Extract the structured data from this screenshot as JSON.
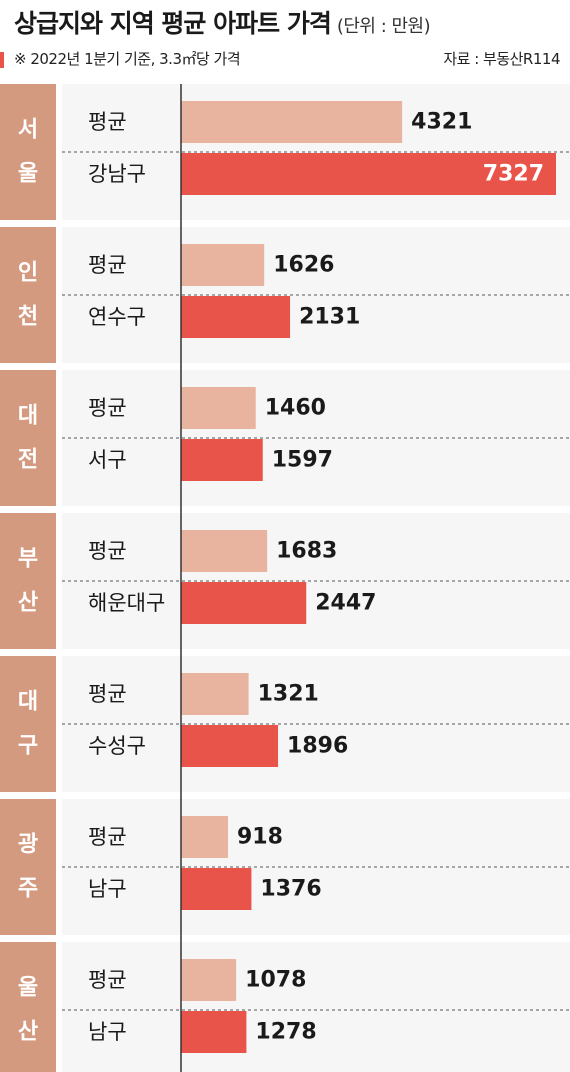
{
  "header": {
    "title": "상급지와 지역 평균 아파트 가격",
    "unit": "(단위 : 만원)",
    "note": "※ 2022년 1분기 기준, 3.3㎡당 가격",
    "source": "자료 : 부동산R114"
  },
  "colors": {
    "region_tab": "#d49a80",
    "region_panel": "#f6f6f6",
    "average_bar": "#e9b49f",
    "district_bar": "#e8534a"
  },
  "chart_data": {
    "type": "bar",
    "orientation": "horizontal",
    "unit": "만원",
    "groups": [
      {
        "region": "서울",
        "items": [
          {
            "label": "평균",
            "value": 4321
          },
          {
            "label": "강남구",
            "value": 7327
          }
        ]
      },
      {
        "region": "인천",
        "items": [
          {
            "label": "평균",
            "value": 1626
          },
          {
            "label": "연수구",
            "value": 2131
          }
        ]
      },
      {
        "region": "대전",
        "items": [
          {
            "label": "평균",
            "value": 1460
          },
          {
            "label": "서구",
            "value": 1597
          }
        ]
      },
      {
        "region": "부산",
        "items": [
          {
            "label": "평균",
            "value": 1683
          },
          {
            "label": "해운대구",
            "value": 2447
          }
        ]
      },
      {
        "region": "대구",
        "items": [
          {
            "label": "평균",
            "value": 1321
          },
          {
            "label": "수성구",
            "value": 1896
          }
        ]
      },
      {
        "region": "광주",
        "items": [
          {
            "label": "평균",
            "value": 918
          },
          {
            "label": "남구",
            "value": 1376
          }
        ]
      },
      {
        "region": "울산",
        "items": [
          {
            "label": "평균",
            "value": 1078
          },
          {
            "label": "남구",
            "value": 1278
          }
        ]
      }
    ]
  }
}
